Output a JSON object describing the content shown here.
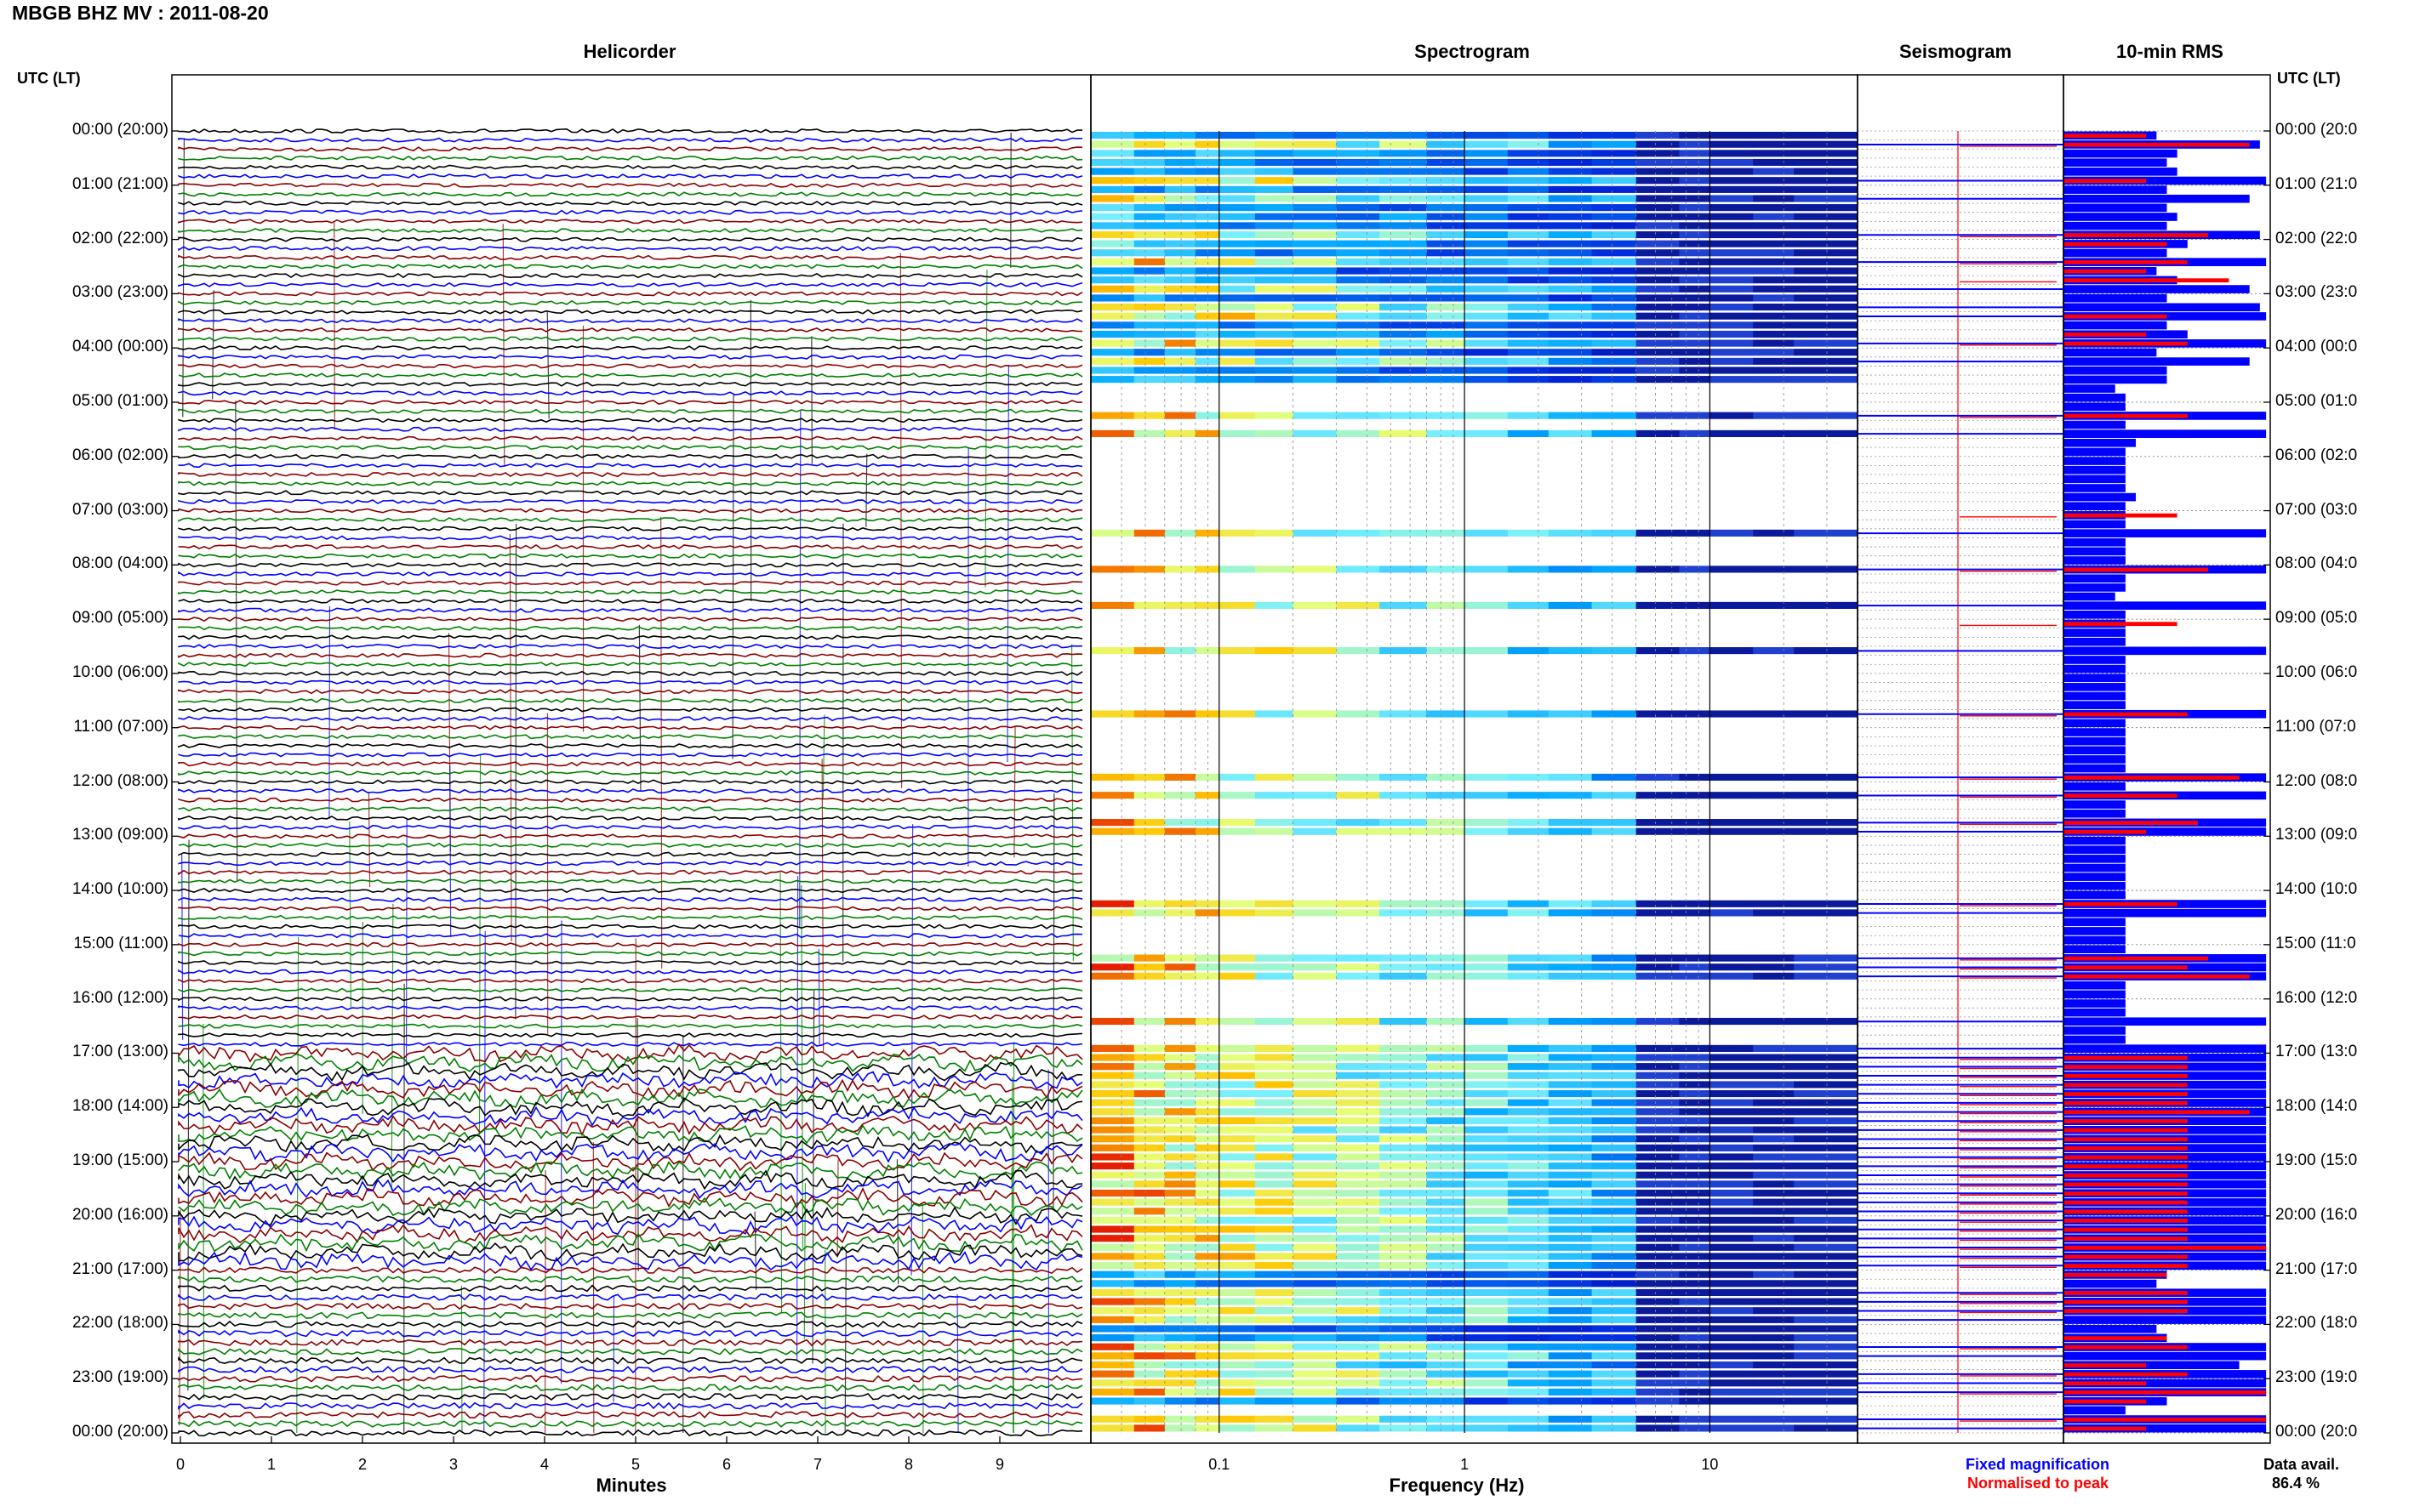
{
  "page": {
    "title": "MBGB BHZ MV : 2011-08-20"
  },
  "panels": {
    "helicorder": "Helicorder",
    "spectrogram": "Spectrogram",
    "seismogram": "Seismogram",
    "rms": "10-min RMS"
  },
  "axis": {
    "utc_label": "UTC (LT)",
    "minutes_title": "Minutes",
    "frequency_title": "Frequency (Hz)",
    "minute_ticks": [
      "0",
      "1",
      "2",
      "3",
      "4",
      "5",
      "6",
      "7",
      "8",
      "9"
    ],
    "freq_ticks": [
      "0.1",
      "1",
      "10"
    ],
    "hour_labels": [
      "00:00 (20:00)",
      "01:00 (21:00)",
      "02:00 (22:00)",
      "03:00 (23:00)",
      "04:00 (00:00)",
      "05:00 (01:00)",
      "06:00 (02:00)",
      "07:00 (03:00)",
      "08:00 (04:00)",
      "09:00 (05:00)",
      "10:00 (06:00)",
      "11:00 (07:00)",
      "12:00 (08:00)",
      "13:00 (09:00)",
      "14:00 (10:00)",
      "15:00 (11:00)",
      "16:00 (12:00)",
      "17:00 (13:00)",
      "18:00 (14:00)",
      "19:00 (15:00)",
      "20:00 (16:00)",
      "21:00 (17:00)",
      "22:00 (18:00)",
      "23:00 (19:00)",
      "00:00 (20:00)"
    ],
    "hour_labels_right": [
      "00:00 (20:0",
      "01:00 (21:0",
      "02:00 (22:0",
      "03:00 (23:0",
      "04:00 (00:0",
      "05:00 (01:0",
      "06:00 (02:0",
      "07:00 (03:0",
      "08:00 (04:0",
      "09:00 (05:0",
      "10:00 (06:0",
      "11:00 (07:0",
      "12:00 (08:0",
      "13:00 (09:0",
      "14:00 (10:0",
      "15:00 (11:0",
      "16:00 (12:0",
      "17:00 (13:0",
      "18:00 (14:0",
      "19:00 (15:0",
      "20:00 (16:0",
      "21:00 (17:0",
      "22:00 (18:0",
      "23:00 (19:0",
      "00:00 (20:0"
    ]
  },
  "legend": {
    "fixed": "Fixed magnification",
    "normalised": "Normalised to peak",
    "data_avail_label": "Data avail.",
    "data_avail_value": "86.4 %"
  },
  "colors": {
    "blue": "#0000ff",
    "red": "#ff0000",
    "green": "#008000",
    "darkred": "#8b0000",
    "navy": "#0000a0",
    "black": "#000000"
  },
  "chart_data": {
    "type": "heatmap",
    "title": "MBGB BHZ MV : 2011-08-20",
    "rows_per_hour": 6,
    "hours": 24,
    "trace_colors": [
      "black",
      "blue",
      "darkred",
      "green"
    ],
    "freq_range_hz": [
      0.03,
      40
    ],
    "minutes_range": [
      0,
      10
    ],
    "rms_level": [
      0.45,
      0.95,
      0.55,
      0.5,
      0.55,
      0.98,
      0.5,
      0.9,
      0.5,
      0.55,
      0.5,
      0.95,
      0.6,
      0.5,
      0.98,
      0.45,
      0.55,
      0.9,
      0.5,
      0.95,
      0.98,
      0.5,
      0.6,
      0.98,
      0.45,
      0.9,
      0.5,
      0.5,
      0.25,
      0.3,
      0.3,
      0.98,
      0.3,
      0.98,
      0.35,
      0.3,
      0.3,
      0.3,
      0.3,
      0.3,
      0.35,
      0.3,
      0.3,
      0.3,
      0.98,
      0.3,
      0.3,
      0.3,
      0.98,
      0.3,
      0.3,
      0.25,
      0.98,
      0.3,
      0.3,
      0.3,
      0.3,
      0.98,
      0.3,
      0.3,
      0.3,
      0.3,
      0.3,
      0.3,
      0.98,
      0.3,
      0.3,
      0.3,
      0.3,
      0.3,
      0.3,
      0.98,
      0.3,
      0.98,
      0.3,
      0.3,
      0.98,
      0.98,
      0.3,
      0.3,
      0.3,
      0.3,
      0.3,
      0.3,
      0.3,
      0.98,
      0.98,
      0.3,
      0.3,
      0.3,
      0.3,
      0.98,
      0.98,
      0.98,
      0.3,
      0.3,
      0.3,
      0.3,
      0.98,
      0.3,
      0.3,
      0.98,
      0.98,
      0.98,
      0.98,
      0.98,
      0.98,
      0.98,
      0.98,
      0.98,
      0.98,
      0.98,
      0.98,
      0.98,
      0.98,
      0.98,
      0.98,
      0.98,
      0.98,
      0.98,
      0.98,
      0.98,
      0.98,
      0.98,
      0.98,
      0.98,
      0.5,
      0.45,
      0.98,
      0.98,
      0.98,
      0.98,
      0.45,
      0.5,
      0.98,
      0.98,
      0.85,
      0.98,
      0.98,
      0.98,
      0.5,
      0.3,
      0.98,
      0.98
    ],
    "rms_normalised": [
      0.4,
      0.9,
      0.3,
      0.2,
      0.2,
      0.4,
      0.3,
      0.2,
      0.3,
      0.2,
      0.2,
      0.7,
      0.5,
      0.3,
      0.6,
      0.4,
      0.8,
      0.2,
      0.2,
      0.3,
      0.5,
      0.2,
      0.4,
      0.6,
      0.3,
      0.2,
      0.2,
      0.2,
      0.2,
      0.2,
      0.2,
      0.6,
      0.2,
      0.2,
      0.2,
      0.2,
      0.2,
      0.2,
      0.2,
      0.2,
      0.2,
      0.2,
      0.55,
      0.2,
      0.2,
      0.2,
      0.2,
      0.2,
      0.7,
      0.2,
      0.2,
      0.2,
      0.2,
      0.2,
      0.55,
      0.2,
      0.2,
      0.2,
      0.2,
      0.2,
      0.2,
      0.2,
      0.2,
      0.2,
      0.6,
      0.2,
      0.2,
      0.2,
      0.2,
      0.2,
      0.2,
      0.85,
      0.2,
      0.55,
      0.2,
      0.2,
      0.65,
      0.4,
      0.2,
      0.2,
      0.2,
      0.2,
      0.2,
      0.2,
      0.2,
      0.55,
      0.2,
      0.2,
      0.2,
      0.2,
      0.2,
      0.7,
      0.6,
      0.9,
      0.2,
      0.2,
      0.2,
      0.2,
      0.2,
      0.2,
      0.2,
      0.2,
      0.6,
      0.6,
      0.6,
      0.6,
      0.6,
      0.6,
      0.9,
      0.6,
      0.6,
      0.6,
      0.6,
      0.6,
      0.6,
      0.6,
      0.6,
      0.6,
      0.6,
      0.6,
      0.6,
      0.6,
      0.6,
      0.98,
      0.6,
      0.6,
      0.5,
      0.3,
      0.6,
      0.6,
      0.6,
      0.3,
      0.2,
      0.5,
      0.6,
      0.2,
      0.4,
      0.6,
      0.4,
      0.98,
      0.4,
      0.2,
      0.98,
      0.4
    ]
  }
}
